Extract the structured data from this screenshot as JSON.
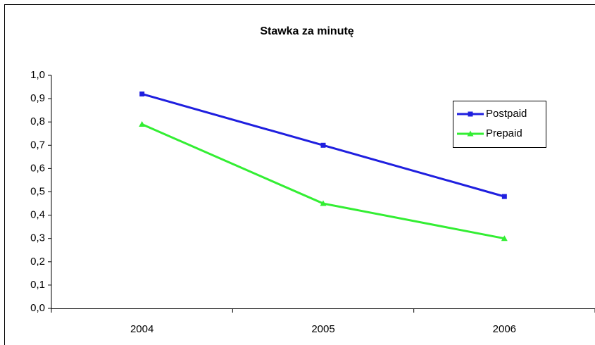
{
  "chart_data": {
    "type": "line",
    "title": "Stawka za minutę",
    "categories": [
      "2004",
      "2005",
      "2006"
    ],
    "series": [
      {
        "name": "Postpaid",
        "color": "#1f1fdf",
        "marker": "square",
        "values": [
          0.92,
          0.7,
          0.48
        ]
      },
      {
        "name": "Prepaid",
        "color": "#33ee33",
        "marker": "triangle",
        "values": [
          0.79,
          0.45,
          0.3
        ]
      }
    ],
    "ylim": [
      0,
      1
    ],
    "yticks": [
      {
        "value": 0,
        "label": "0,0"
      },
      {
        "value": 0.1,
        "label": "0,1"
      },
      {
        "value": 0.2,
        "label": "0,2"
      },
      {
        "value": 0.3,
        "label": "0,3"
      },
      {
        "value": 0.4,
        "label": "0,4"
      },
      {
        "value": 0.5,
        "label": "0,5"
      },
      {
        "value": 0.6,
        "label": "0,6"
      },
      {
        "value": 0.7,
        "label": "0,7"
      },
      {
        "value": 0.8,
        "label": "0,8"
      },
      {
        "value": 0.9,
        "label": "0,9"
      },
      {
        "value": 1,
        "label": "1,0"
      }
    ],
    "grid": false,
    "legend": "right"
  }
}
